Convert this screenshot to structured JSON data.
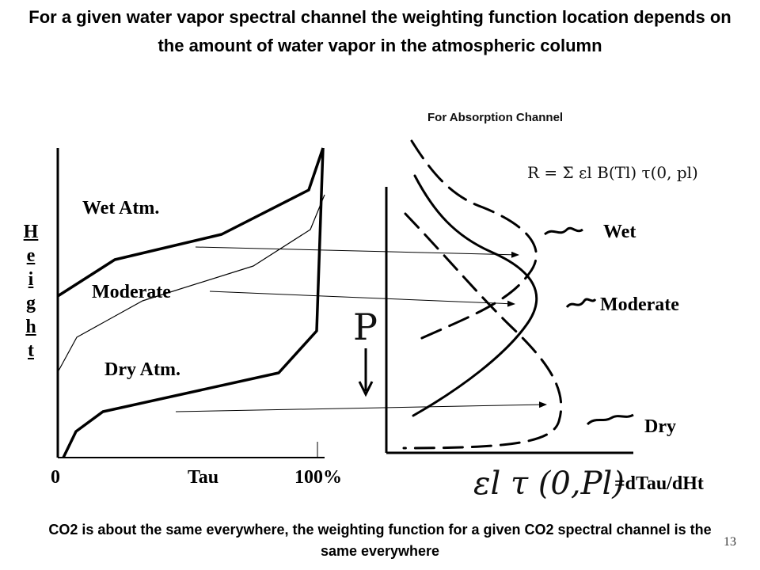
{
  "title": "For a given water vapor spectral channel the weighting function location depends on the amount of water vapor in the atmospheric column",
  "left_graph": {
    "y_axis_label": "Height",
    "x_tick_start": "0",
    "x_label": "Tau",
    "x_tick_end": "100%",
    "curve_labels": {
      "wet": "Wet Atm.",
      "moderate": "Moderate",
      "dry": "Dry Atm."
    }
  },
  "right_graph": {
    "header": "For Absorption Channel",
    "formula": "R = Σ εl B(Tl) τ(0, pl)",
    "p_axis": "P",
    "curve_labels": {
      "wet": "Wet",
      "moderate": "Moderate",
      "dry": "Dry"
    },
    "weighting_expr": "εl τ (0,Pl)",
    "weighting_def": "=dTau/dHt"
  },
  "footer": "CO2 is about the same everywhere, the weighting function for a given CO2 spectral channel is the same everywhere",
  "page_number": "13"
}
